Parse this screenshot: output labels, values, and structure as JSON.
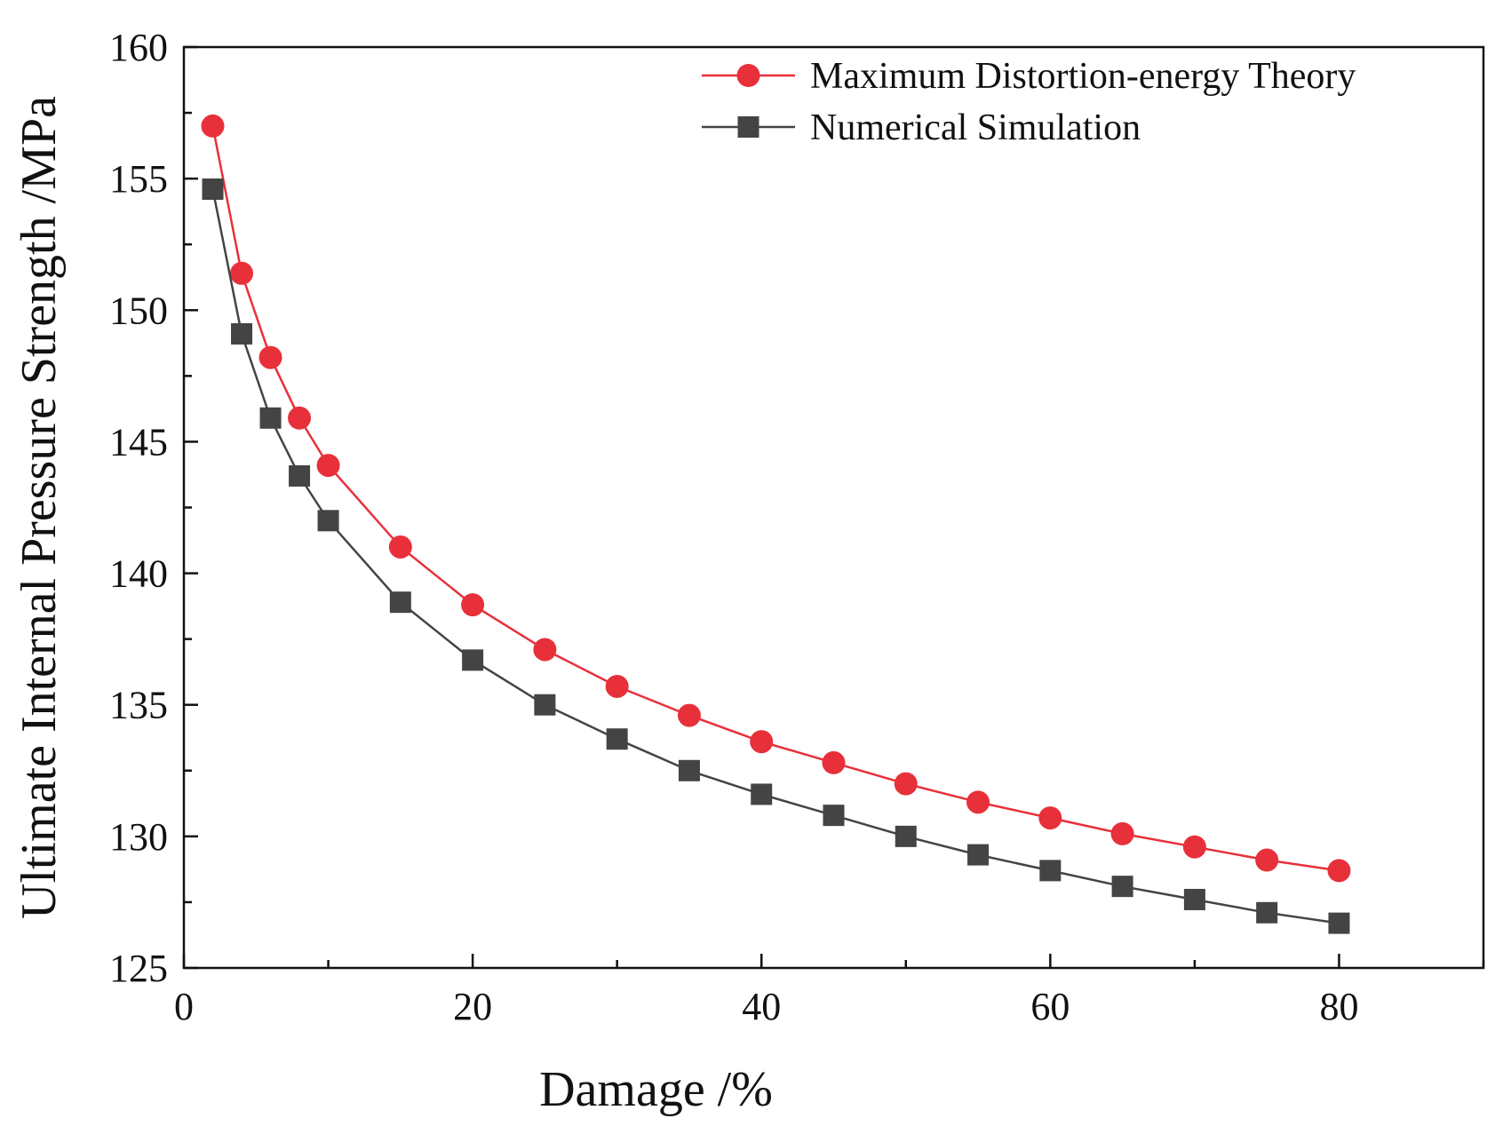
{
  "chart_data": {
    "type": "line",
    "title": "",
    "xlabel": "Damage /%",
    "ylabel": "Ultimate Internal Pressure Strength /MPa",
    "xlim": [
      0,
      90
    ],
    "ylim": [
      125,
      160
    ],
    "xticks": [
      0,
      20,
      40,
      60,
      80
    ],
    "yticks": [
      125,
      130,
      135,
      140,
      145,
      150,
      155,
      160
    ],
    "x_minor_step": 10,
    "y_minor_step": 2.5,
    "grid": false,
    "legend_position": "top-right",
    "x": [
      2,
      4,
      6,
      8,
      10,
      15,
      20,
      25,
      30,
      35,
      40,
      45,
      50,
      55,
      60,
      65,
      70,
      75,
      80
    ],
    "series": [
      {
        "name": "Maximum Distortion-energy Theory",
        "color": "#e8303a",
        "marker": "circle",
        "values": [
          157.0,
          151.4,
          148.2,
          145.9,
          144.1,
          141.0,
          138.8,
          137.1,
          135.7,
          134.6,
          133.6,
          132.8,
          132.0,
          131.3,
          130.7,
          130.1,
          129.6,
          129.1,
          128.7
        ]
      },
      {
        "name": "Numerical Simulation",
        "color": "#444444",
        "marker": "square",
        "values": [
          154.6,
          149.1,
          145.9,
          143.7,
          142.0,
          138.9,
          136.7,
          135.0,
          133.7,
          132.5,
          131.6,
          130.8,
          130.0,
          129.3,
          128.7,
          128.1,
          127.6,
          127.1,
          126.7
        ]
      }
    ]
  }
}
